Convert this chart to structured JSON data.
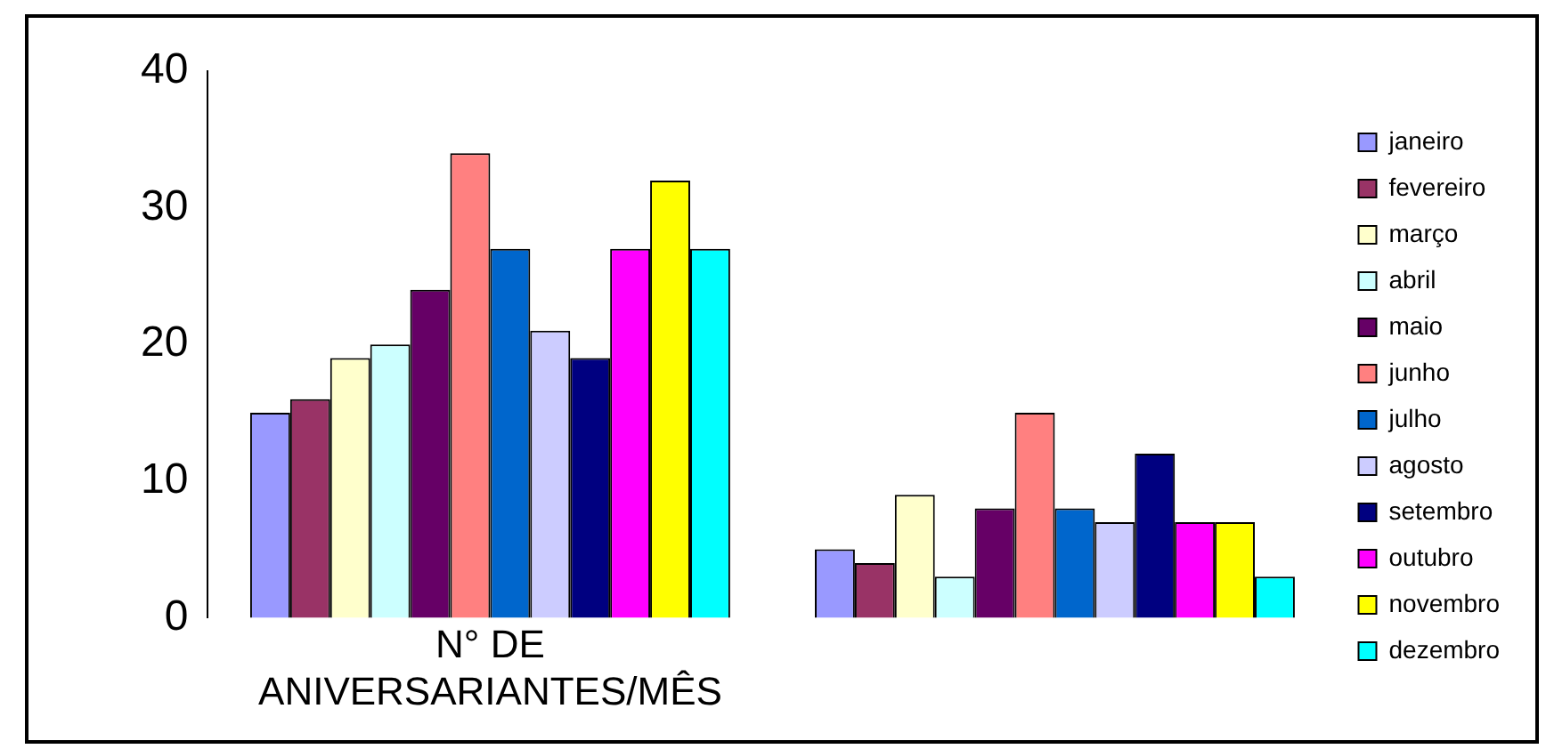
{
  "chart_data": {
    "type": "bar",
    "categories": [
      "N° DE ANIVERSARIANTES/MÊS",
      null
    ],
    "series": [
      {
        "name": "janeiro",
        "color": "#9999ff",
        "values": [
          15,
          5
        ]
      },
      {
        "name": "fevereiro",
        "color": "#993366",
        "values": [
          16,
          4
        ]
      },
      {
        "name": "março",
        "color": "#ffffcc",
        "values": [
          19,
          9
        ]
      },
      {
        "name": "abril",
        "color": "#ccffff",
        "values": [
          20,
          3
        ]
      },
      {
        "name": "maio",
        "color": "#660066",
        "values": [
          24,
          8
        ]
      },
      {
        "name": "junho",
        "color": "#ff8080",
        "values": [
          34,
          15
        ]
      },
      {
        "name": "julho",
        "color": "#0066cc",
        "values": [
          27,
          8
        ]
      },
      {
        "name": "agosto",
        "color": "#ccccff",
        "values": [
          21,
          7
        ]
      },
      {
        "name": "setembro",
        "color": "#000080",
        "values": [
          19,
          12
        ]
      },
      {
        "name": "outubro",
        "color": "#ff00ff",
        "values": [
          27,
          7
        ]
      },
      {
        "name": "novembro",
        "color": "#ffff00",
        "values": [
          32,
          7
        ]
      },
      {
        "name": "dezembro",
        "color": "#00ffff",
        "values": [
          27,
          3
        ]
      }
    ],
    "ylim": [
      0,
      40
    ],
    "yticks": [
      0,
      10,
      20,
      30,
      40
    ],
    "grid": false,
    "legend": "right"
  }
}
